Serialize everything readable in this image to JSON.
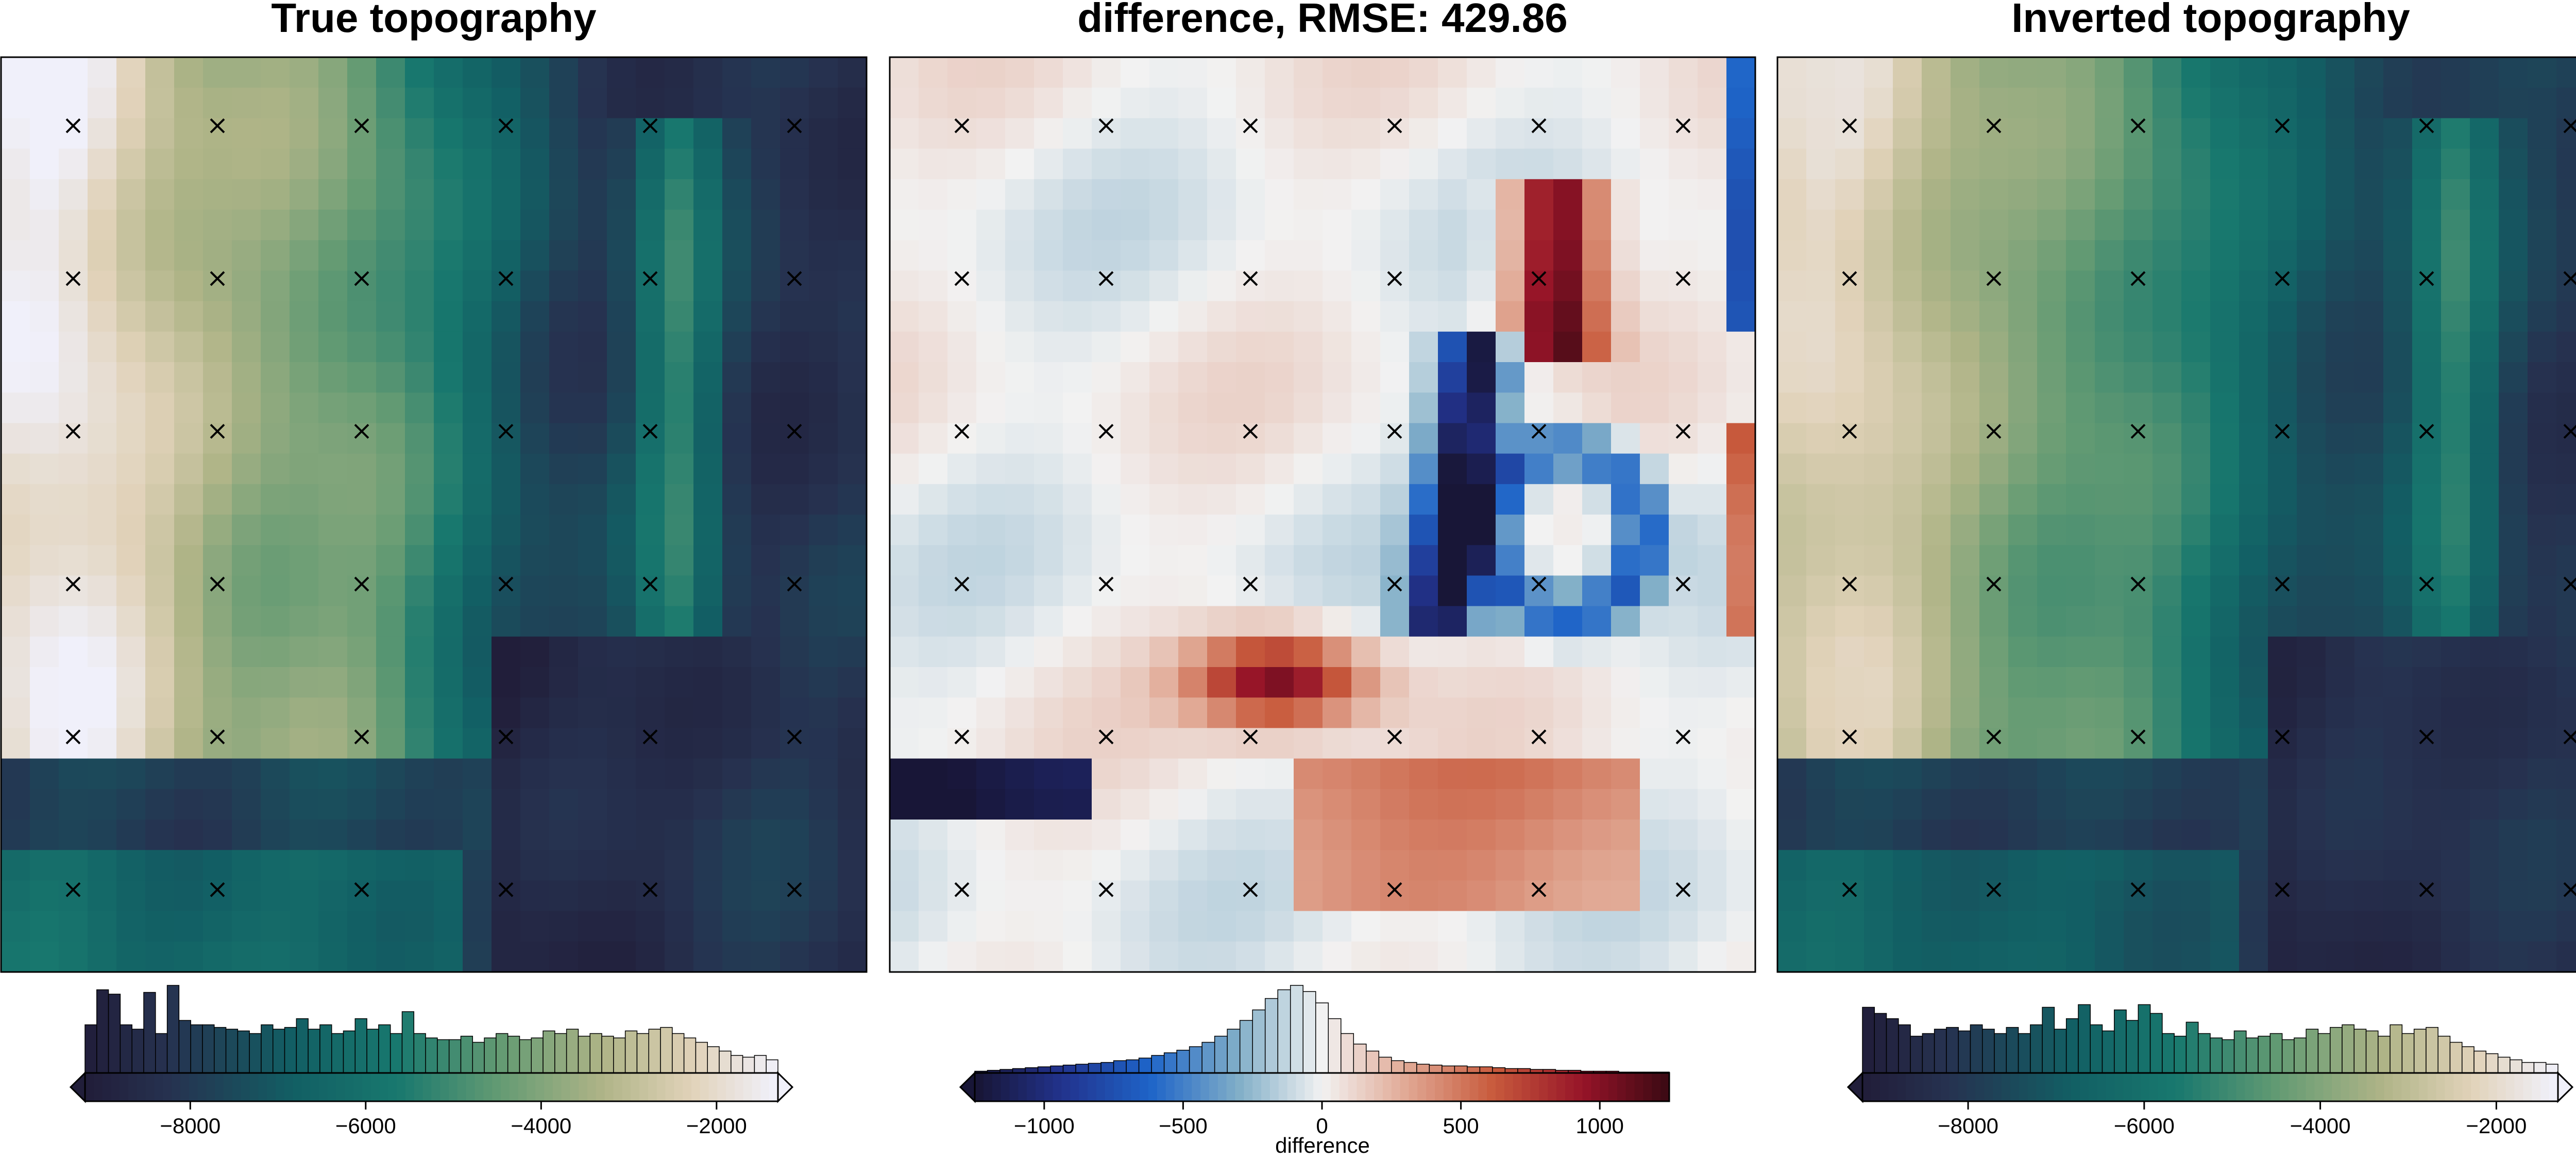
{
  "chart_data": [
    {
      "type": "heatmap",
      "title": "True topography",
      "colormap": "cmocean-rain (dark navy to teal to tan to white)",
      "grid_size": [
        30,
        30
      ],
      "markers": "x",
      "marker_grid": [
        6,
        6
      ],
      "colorbar": {
        "ticks": [
          -8000,
          -6000,
          -4000,
          -2000
        ],
        "tick_labels": [
          "−8000",
          "−6000",
          "−4000",
          "−2000"
        ],
        "range": [
          -9200,
          -1300
        ],
        "label": "",
        "extend": "both",
        "histogram": [
          0.55,
          0.95,
          0.9,
          0.55,
          0.5,
          0.92,
          0.45,
          1.0,
          0.6,
          0.55,
          0.55,
          0.52,
          0.5,
          0.48,
          0.45,
          0.55,
          0.5,
          0.52,
          0.62,
          0.5,
          0.55,
          0.45,
          0.48,
          0.62,
          0.5,
          0.55,
          0.45,
          0.7,
          0.45,
          0.4,
          0.38,
          0.38,
          0.42,
          0.35,
          0.4,
          0.45,
          0.42,
          0.38,
          0.4,
          0.48,
          0.45,
          0.5,
          0.42,
          0.45,
          0.42,
          0.4,
          0.48,
          0.45,
          0.5,
          0.52,
          0.45,
          0.4,
          0.35,
          0.3,
          0.25,
          0.2,
          0.18,
          0.2,
          0.15
        ]
      }
    },
    {
      "type": "heatmap",
      "title": "difference, RMSE: 429.86",
      "colormap": "balance (navy-blue-white-red-darkred)",
      "grid_size": [
        30,
        30
      ],
      "markers": "x",
      "marker_grid": [
        6,
        6
      ],
      "colorbar": {
        "ticks": [
          -1000,
          -500,
          0,
          500,
          1000
        ],
        "tick_labels": [
          "−1000",
          "−500",
          "0",
          "500",
          "1000"
        ],
        "range": [
          -1250,
          1250
        ],
        "label": "difference",
        "extend": "min",
        "histogram": [
          0.02,
          0.03,
          0.04,
          0.05,
          0.06,
          0.07,
          0.08,
          0.09,
          0.1,
          0.11,
          0.12,
          0.14,
          0.15,
          0.17,
          0.2,
          0.23,
          0.26,
          0.3,
          0.35,
          0.42,
          0.5,
          0.6,
          0.72,
          0.85,
          0.95,
          1.0,
          0.93,
          0.8,
          0.62,
          0.45,
          0.33,
          0.25,
          0.18,
          0.14,
          0.12,
          0.1,
          0.09,
          0.08,
          0.08,
          0.07,
          0.07,
          0.06,
          0.05,
          0.05,
          0.04,
          0.04,
          0.03,
          0.03,
          0.02,
          0.02,
          0.02,
          0.01,
          0.01,
          0.01,
          0.01
        ]
      }
    },
    {
      "type": "heatmap",
      "title": "Inverted topography",
      "colormap": "cmocean-rain (dark navy to teal to tan to white)",
      "grid_size": [
        30,
        30
      ],
      "markers": "x",
      "marker_grid": [
        6,
        6
      ],
      "colorbar": {
        "ticks": [
          -8000,
          -6000,
          -4000,
          -2000
        ],
        "tick_labels": [
          "−8000",
          "−6000",
          "−4000",
          "−2000"
        ],
        "range": [
          -9200,
          -1300
        ],
        "label": "",
        "extend": "both",
        "histogram": [
          0.75,
          0.68,
          0.62,
          0.55,
          0.42,
          0.45,
          0.5,
          0.52,
          0.48,
          0.55,
          0.5,
          0.45,
          0.52,
          0.45,
          0.55,
          0.75,
          0.5,
          0.62,
          0.78,
          0.55,
          0.48,
          0.72,
          0.6,
          0.78,
          0.68,
          0.45,
          0.42,
          0.58,
          0.45,
          0.4,
          0.38,
          0.48,
          0.4,
          0.42,
          0.45,
          0.38,
          0.4,
          0.5,
          0.45,
          0.52,
          0.55,
          0.5,
          0.48,
          0.42,
          0.55,
          0.45,
          0.5,
          0.52,
          0.42,
          0.35,
          0.3,
          0.25,
          0.22,
          0.18,
          0.15,
          0.12,
          0.12,
          0.1
        ]
      }
    }
  ]
}
